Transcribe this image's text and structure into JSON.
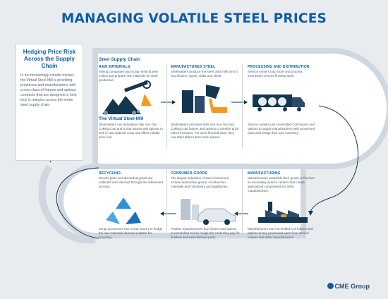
{
  "title": "MANAGING VOLATILE STEEL PRICES",
  "intro": {
    "heading": "Hedging Price Risk Across the Supply Chain",
    "body": "In an increasingly volatile market, the Virtual Steel Mill is providing producers and manufacturers with a new class of futures and options contracts that are designed to help lock in margins across the entire steel supply chain."
  },
  "chain_title": "Steel Supply Chain",
  "mill_title": "The Virtual Steel Mill",
  "sections": {
    "raw_materials": {
      "label": "RAW MATERIALS",
      "text": "Mining companies and scrap metal buyers collect and prepare raw materials for steel production.",
      "hedge": "Steelmakers use derivatives like Iron Ore, Coking Coal and Scrap futures and options to lock in raw material costs and offset volatile price risk."
    },
    "manufactured_steel": {
      "label": "MANUFACTURED STEEL",
      "text": "Steelmakers produce the steel, and mills form it into blooms, ingots, slabs and sheet.",
      "hedge": "Steelmakers and steel mills use Iron Ore and Coking Coal futures and options to transfer price risk to investors. For semi-finished steel, they use Steel Billet futures and options."
    },
    "processing": {
      "label": "PROCESSING AND DISTRIBUTION",
      "text": "Service centers buy, store and process inventories of semi-finished steel.",
      "hedge": "Service centers use Hot-Rolled Coil futures and options to supply manufacturers with processed parts and hedge their own inventory."
    },
    "recycling": {
      "label": "RECYCLING",
      "text": "Excess parts and discarded goods are collected and returned through the refinement process.",
      "hedge": "Scrap processors use Scrap futures to hedge the raw materials deemed suitable for recycling."
    },
    "consumer_goods": {
      "label": "CONSUMER GOODS",
      "text": "The largest industries of steel consumers include automotive goods, construction materials and machinery and appliances.",
      "hedge": "Product manufacturers buy futures and options in Hot-Rolled Coil to hedge the costs they pay for finished and semi-finished parts."
    },
    "manufacturing": {
      "label": "MANUFACTURING",
      "text": "Manufacturers assemble their goods or function as secondary service centers that create specialized components for other manufacturers.",
      "hedge": "Manufacturers use Hot-Rolled Coil futures and options to buy processed parts from service centers and other manufacturers."
    }
  },
  "logo": "CME Group",
  "colors": {
    "accent": "#0f5da4",
    "track": "#cfd8e0",
    "dark": "#14364f",
    "orange": "#f39a1f",
    "recycle": "#2d8fd8"
  },
  "icons": [
    "mining-illustration",
    "steel-mill-illustration",
    "truck-illustration",
    "recycle-illustration",
    "car-illustration",
    "factory-illustration"
  ]
}
